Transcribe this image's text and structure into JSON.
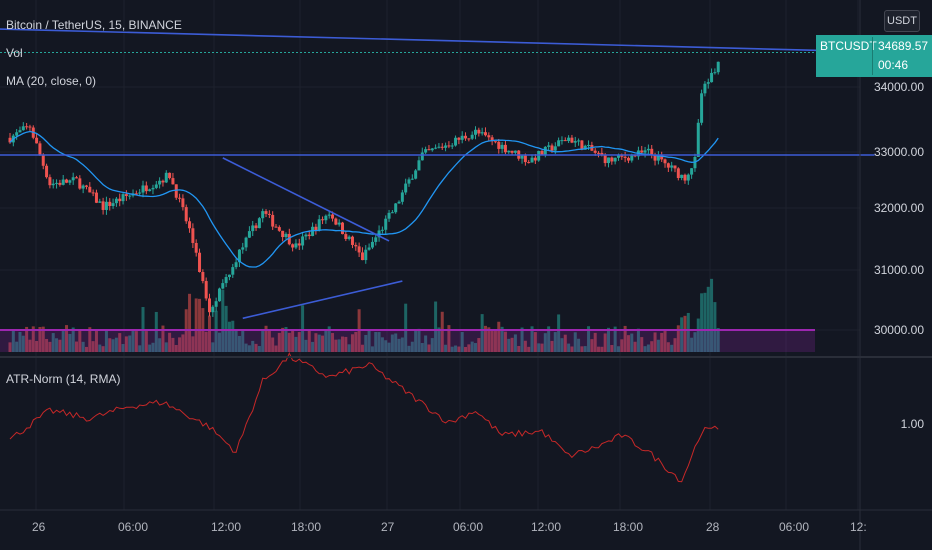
{
  "header": {
    "symbol_title": "Bitcoin / TetherUS, 15, BINANCE",
    "vol_label": "Vol",
    "ma_label": "MA (20, close, 0)",
    "atr_label": "ATR-Norm (14, RMA)"
  },
  "currency_button": "USDT",
  "price_badge": {
    "symbol": "BTCUSDT",
    "price": "34689.57",
    "countdown": "00:46"
  },
  "price_axis": [
    "34000.00",
    "33000.00",
    "32000.00",
    "31000.00",
    "30000.00"
  ],
  "atr_axis": [
    "1.00"
  ],
  "time_axis": [
    "26",
    "06:00",
    "12:00",
    "18:00",
    "27",
    "06:00",
    "12:00",
    "18:00",
    "28",
    "06:00",
    "12:"
  ],
  "colors": {
    "background": "#131722",
    "up": "#26a69a",
    "down": "#ef5350",
    "ma": "#2196f3",
    "trendline": "#3c5cd6",
    "atr": "#c62828",
    "volume_ma": "#9c27b0",
    "badge": "#26a69a"
  },
  "chart_data": {
    "type": "candlestick",
    "series": [
      {
        "name": "BTCUSDT"
      }
    ],
    "anchors": [
      {
        "day_hour": 0,
        "price": 33200
      },
      {
        "day_hour": 1.5,
        "price": 33400
      },
      {
        "day_hour": 3,
        "price": 32400
      },
      {
        "day_hour": 5,
        "price": 32450
      },
      {
        "day_hour": 7,
        "price": 32000
      },
      {
        "day_hour": 9,
        "price": 32200
      },
      {
        "day_hour": 12,
        "price": 32550
      },
      {
        "day_hour": 13.5,
        "price": 31600
      },
      {
        "day_hour": 15,
        "price": 30200
      },
      {
        "day_hour": 17,
        "price": 31100
      },
      {
        "day_hour": 19,
        "price": 31900
      },
      {
        "day_hour": 21.5,
        "price": 31300
      },
      {
        "day_hour": 24,
        "price": 31900
      },
      {
        "day_hour": 26.5,
        "price": 31100
      },
      {
        "day_hour": 29,
        "price": 32000
      },
      {
        "day_hour": 31,
        "price": 32900
      },
      {
        "day_hour": 35,
        "price": 33300
      },
      {
        "day_hour": 39,
        "price": 32800
      },
      {
        "day_hour": 42,
        "price": 33200
      },
      {
        "day_hour": 45,
        "price": 32800
      },
      {
        "day_hour": 48,
        "price": 32950
      },
      {
        "day_hour": 50.7,
        "price": 32500
      },
      {
        "day_hour": 51.5,
        "price": 32800
      },
      {
        "day_hour": 52,
        "price": 34000
      },
      {
        "day_hour": 53.5,
        "price": 34600
      }
    ],
    "moving_average": {
      "period": 20,
      "source": "close"
    },
    "atr_norm": {
      "period": 14,
      "smoothing": "RMA",
      "reference_level": 1.0
    },
    "current_price": 34689.57,
    "ylim": [
      29700,
      35400
    ]
  }
}
